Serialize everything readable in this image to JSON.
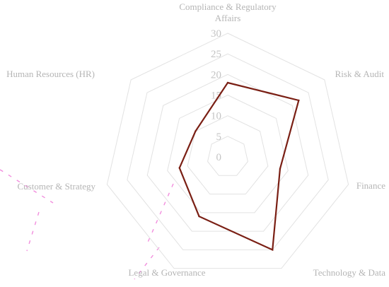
{
  "chart_data": {
    "type": "radar",
    "categories": [
      [
        "Compliance & Regulatory",
        "Affairs"
      ],
      [
        "Risk & Audit"
      ],
      [
        "Finance"
      ],
      [
        "Technology & Data"
      ],
      [
        "Legal & Governance"
      ],
      [
        "Customer & Strategy"
      ],
      [
        "Human Resources (HR)"
      ]
    ],
    "rlim": [
      0,
      30
    ],
    "ticks": [
      0,
      5,
      10,
      15,
      20,
      25,
      30
    ],
    "grid": true,
    "legend": "none",
    "series": [
      {
        "values": [
          18,
          22,
          13,
          25,
          16,
          12,
          10
        ],
        "color": "#7a1f14"
      }
    ]
  }
}
